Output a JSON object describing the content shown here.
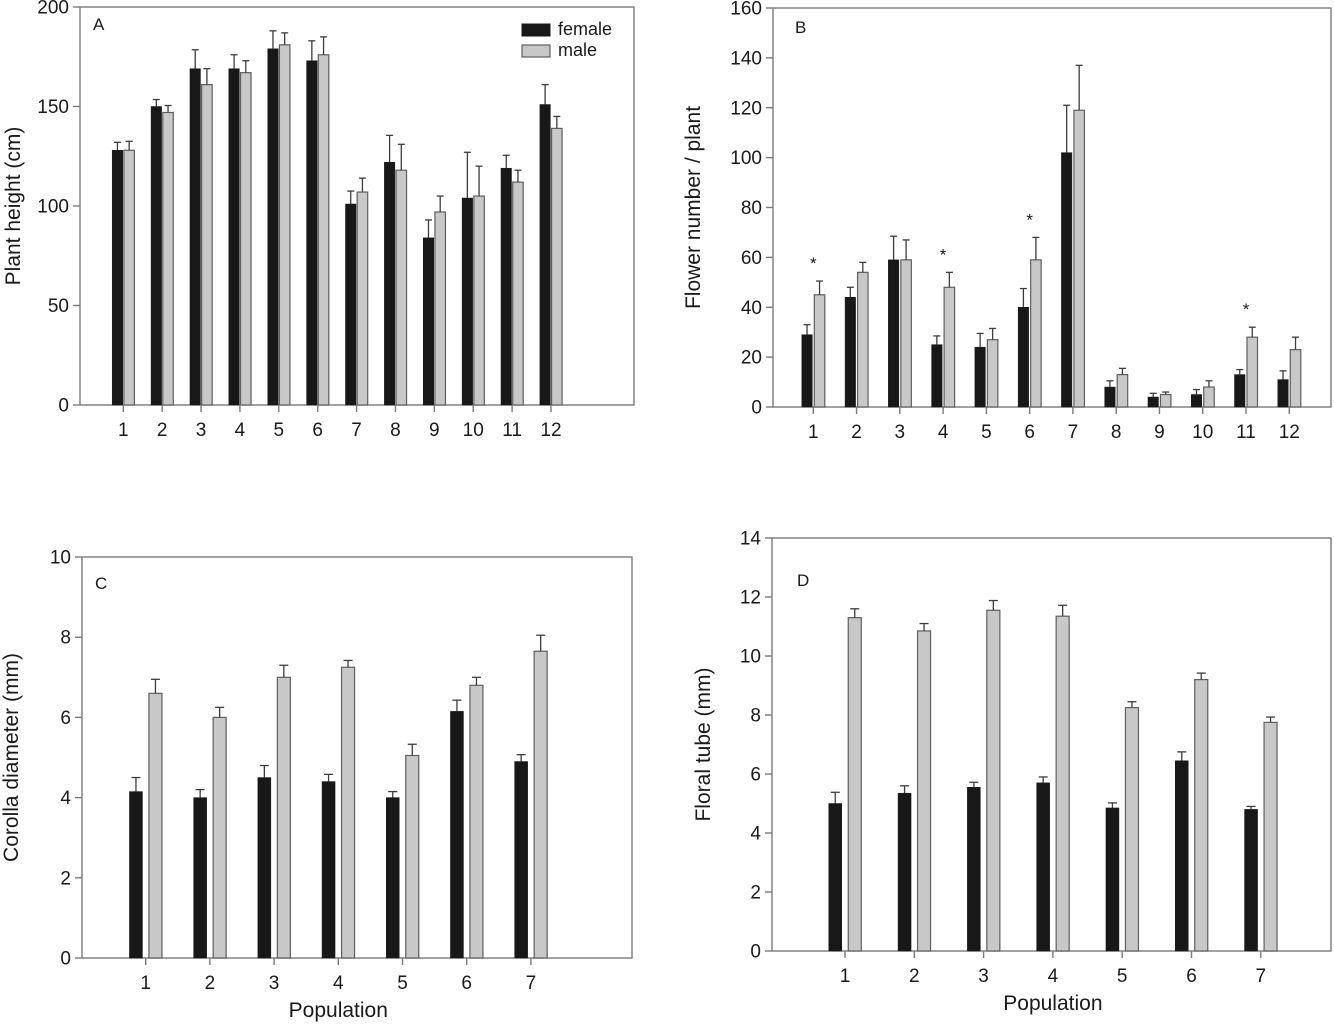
{
  "figure_title": "",
  "colors": {
    "background": "#ffffff",
    "female_fill": "#181818",
    "male_fill": "#c8c8c8",
    "male_stroke": "#5f5f5f",
    "frame": "#7a7a7a",
    "error_bar": "#3c3c3c",
    "text": "#1a1a1a"
  },
  "legend": {
    "female_label": "female",
    "male_label": "male"
  },
  "chart_data": [
    {
      "panel": "A",
      "type": "bar",
      "title": "",
      "ylabel": "Plant height (cm)",
      "xlabel": "",
      "categories": [
        "1",
        "2",
        "3",
        "4",
        "5",
        "6",
        "7",
        "8",
        "9",
        "10",
        "11",
        "12"
      ],
      "ylim": [
        0,
        200
      ],
      "yticks": [
        0,
        50,
        100,
        150,
        200
      ],
      "grid": false,
      "legend": {
        "show": true,
        "position": "top-right",
        "items": [
          "female",
          "male"
        ]
      },
      "series": [
        {
          "name": "female",
          "values": [
            128,
            150,
            169,
            169,
            179,
            173,
            101,
            122,
            84,
            104,
            119,
            151
          ],
          "errors": [
            4,
            3.5,
            9.5,
            7,
            9,
            10,
            6.5,
            13.5,
            9,
            23,
            6.5,
            10
          ]
        },
        {
          "name": "male",
          "values": [
            128,
            147,
            161,
            167,
            181,
            176,
            107,
            118,
            97,
            105,
            112,
            139
          ],
          "errors": [
            4.5,
            3.5,
            8,
            6,
            6,
            9,
            7,
            13,
            8,
            15,
            6,
            6
          ]
        }
      ],
      "significance_categories": []
    },
    {
      "panel": "B",
      "type": "bar",
      "title": "",
      "ylabel": "Flower number / plant",
      "xlabel": "",
      "categories": [
        "1",
        "2",
        "3",
        "4",
        "5",
        "6",
        "7",
        "8",
        "9",
        "10",
        "11",
        "12"
      ],
      "ylim": [
        0,
        160
      ],
      "yticks": [
        0,
        20,
        40,
        60,
        80,
        100,
        120,
        140,
        160
      ],
      "grid": false,
      "legend": {
        "show": false
      },
      "series": [
        {
          "name": "female",
          "values": [
            29,
            44,
            59,
            25,
            24,
            40,
            102,
            8,
            4,
            5,
            13,
            11
          ],
          "errors": [
            4,
            4,
            9.5,
            3.5,
            5.5,
            7.5,
            19,
            2.5,
            1.5,
            2,
            2,
            3.5
          ]
        },
        {
          "name": "male",
          "values": [
            45,
            54,
            59,
            48,
            27,
            59,
            119,
            13,
            5,
            8,
            28,
            23
          ],
          "errors": [
            5.5,
            4,
            8,
            6,
            4.5,
            9,
            18,
            2.5,
            1,
            2.5,
            4,
            5
          ]
        }
      ],
      "significance_categories": [
        "1",
        "4",
        "6",
        "11"
      ],
      "significance_symbol": "*"
    },
    {
      "panel": "C",
      "type": "bar",
      "title": "",
      "ylabel": "Corolla diameter (mm)",
      "xlabel": "Population",
      "categories": [
        "1",
        "2",
        "3",
        "4",
        "5",
        "6",
        "7"
      ],
      "ylim": [
        0,
        10
      ],
      "yticks": [
        0,
        2,
        4,
        6,
        8,
        10
      ],
      "grid": false,
      "legend": {
        "show": false
      },
      "series": [
        {
          "name": "female",
          "values": [
            4.15,
            4.0,
            4.5,
            4.4,
            4.0,
            6.15,
            4.9
          ],
          "errors": [
            0.35,
            0.2,
            0.3,
            0.18,
            0.15,
            0.28,
            0.17
          ]
        },
        {
          "name": "male",
          "values": [
            6.6,
            6.0,
            7.0,
            7.25,
            5.05,
            6.8,
            7.65
          ],
          "errors": [
            0.35,
            0.25,
            0.3,
            0.17,
            0.28,
            0.2,
            0.4
          ]
        }
      ],
      "significance_categories": []
    },
    {
      "panel": "D",
      "type": "bar",
      "title": "",
      "ylabel": "Floral tube (mm)",
      "xlabel": "Population",
      "categories": [
        "1",
        "2",
        "3",
        "4",
        "5",
        "6",
        "7"
      ],
      "ylim": [
        0,
        14
      ],
      "yticks": [
        0,
        2,
        4,
        6,
        8,
        10,
        12,
        14
      ],
      "grid": false,
      "legend": {
        "show": false
      },
      "series": [
        {
          "name": "female",
          "values": [
            5.0,
            5.35,
            5.55,
            5.7,
            4.85,
            6.45,
            4.8
          ],
          "errors": [
            0.38,
            0.25,
            0.17,
            0.2,
            0.17,
            0.3,
            0.1
          ]
        },
        {
          "name": "male",
          "values": [
            11.3,
            10.85,
            11.55,
            11.35,
            8.25,
            9.2,
            7.75
          ],
          "errors": [
            0.3,
            0.25,
            0.33,
            0.37,
            0.2,
            0.22,
            0.18
          ]
        }
      ],
      "significance_categories": []
    }
  ]
}
